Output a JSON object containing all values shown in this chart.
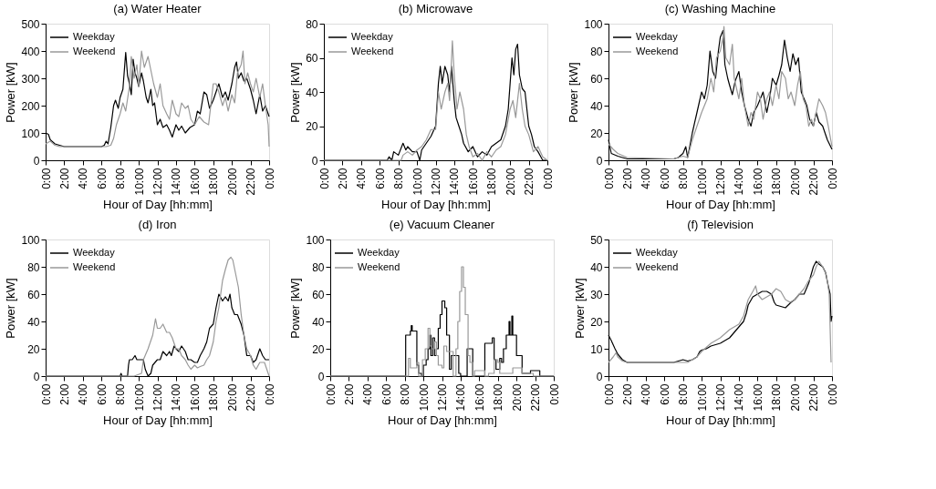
{
  "chart_data": [
    {
      "type": "line",
      "title": "(a) Water Heater",
      "xlabel": "Hour of Day [hh:mm]",
      "ylabel": "Power [kW]",
      "legend": "top left",
      "grid": false,
      "xlim": [
        0,
        24
      ],
      "ylim": [
        0,
        500
      ],
      "yticks": [
        0,
        100,
        200,
        300,
        400,
        500
      ],
      "xticks": [
        {
          "value": 0,
          "label": "0:00"
        },
        {
          "value": 2,
          "label": "2:00"
        },
        {
          "value": 4,
          "label": "4:00"
        },
        {
          "value": 6,
          "label": "6:00"
        },
        {
          "value": 8,
          "label": "8:00"
        },
        {
          "value": 10,
          "label": "10:00"
        },
        {
          "value": 12,
          "label": "12:00"
        },
        {
          "value": 14,
          "label": "14:00"
        },
        {
          "value": 16,
          "label": "16:00"
        },
        {
          "value": 18,
          "label": "18:00"
        },
        {
          "value": 20,
          "label": "20:00"
        },
        {
          "value": 22,
          "label": "22:00"
        },
        {
          "value": 24,
          "label": "0:00"
        }
      ],
      "series": [
        {
          "name": "Weekday",
          "color": "#000000",
          "x": [
            0,
            0.3,
            0.5,
            1,
            1.5,
            2,
            6,
            6.3,
            6.5,
            6.7,
            7,
            7.3,
            7.5,
            7.8,
            8,
            8.3,
            8.5,
            8.6,
            8.8,
            9,
            9.2,
            9.4,
            9.6,
            9.8,
            10,
            10.3,
            10.5,
            10.8,
            11,
            11.3,
            11.5,
            11.7,
            12,
            12.3,
            12.6,
            13,
            13.3,
            13.6,
            14,
            14.3,
            14.6,
            15,
            15.5,
            16,
            16.3,
            16.6,
            17,
            17.3,
            17.6,
            18,
            18.3,
            18.6,
            19,
            19.3,
            19.6,
            20,
            20.3,
            20.5,
            20.7,
            21,
            21.3,
            21.6,
            22,
            22.3,
            22.6,
            23,
            23.3,
            23.6,
            23.8,
            24
          ],
          "values": [
            100,
            95,
            75,
            60,
            55,
            50,
            50,
            55,
            70,
            60,
            120,
            200,
            220,
            190,
            230,
            260,
            350,
            395,
            310,
            280,
            240,
            370,
            320,
            300,
            270,
            320,
            290,
            230,
            210,
            260,
            200,
            210,
            130,
            150,
            120,
            130,
            110,
            85,
            130,
            110,
            125,
            100,
            120,
            130,
            180,
            170,
            250,
            240,
            190,
            220,
            250,
            280,
            230,
            250,
            220,
            280,
            340,
            360,
            300,
            320,
            290,
            300,
            260,
            220,
            170,
            240,
            180,
            200,
            180,
            160
          ]
        },
        {
          "name": "Weekend",
          "color": "#999999",
          "x": [
            0,
            0.5,
            1,
            1.5,
            6.5,
            7,
            7.3,
            7.6,
            8,
            8.3,
            8.6,
            9,
            9.2,
            9.5,
            9.8,
            10,
            10.3,
            10.6,
            11,
            11.3,
            11.6,
            12,
            12.3,
            12.6,
            13,
            13.3,
            13.6,
            14,
            14.3,
            14.6,
            15,
            15.3,
            15.6,
            16,
            16.5,
            17,
            17.5,
            18,
            18.3,
            18.6,
            19,
            19.3,
            19.6,
            20,
            20.3,
            20.6,
            21,
            21.2,
            21.4,
            21.7,
            22,
            22.3,
            22.6,
            23,
            23.3,
            23.6,
            23.9,
            24
          ],
          "values": [
            60,
            70,
            55,
            50,
            50,
            55,
            80,
            130,
            170,
            210,
            180,
            270,
            380,
            300,
            350,
            270,
            400,
            340,
            380,
            330,
            280,
            230,
            280,
            200,
            170,
            150,
            220,
            170,
            160,
            210,
            190,
            200,
            150,
            130,
            160,
            140,
            130,
            280,
            280,
            250,
            200,
            230,
            180,
            240,
            210,
            320,
            350,
            400,
            280,
            320,
            280,
            250,
            300,
            230,
            280,
            200,
            130,
            50
          ]
        }
      ]
    },
    {
      "type": "line",
      "title": "(b) Microwave",
      "xlabel": "Hour of Day [hh:mm]",
      "ylabel": "Power [kW]",
      "legend": "top left",
      "grid": false,
      "xlim": [
        0,
        24
      ],
      "ylim": [
        0,
        80
      ],
      "yticks": [
        0,
        20,
        40,
        60,
        80
      ],
      "xticks": [
        {
          "value": 0,
          "label": "0:00"
        },
        {
          "value": 2,
          "label": "2:00"
        },
        {
          "value": 4,
          "label": "4:00"
        },
        {
          "value": 6,
          "label": "6:00"
        },
        {
          "value": 8,
          "label": "8:00"
        },
        {
          "value": 10,
          "label": "10:00"
        },
        {
          "value": 12,
          "label": "12:00"
        },
        {
          "value": 14,
          "label": "14:00"
        },
        {
          "value": 16,
          "label": "16:00"
        },
        {
          "value": 18,
          "label": "18:00"
        },
        {
          "value": 20,
          "label": "20:00"
        },
        {
          "value": 22,
          "label": "22:00"
        },
        {
          "value": 24,
          "label": "0:00"
        }
      ],
      "series": [
        {
          "name": "Weekday",
          "color": "#000000",
          "x": [
            0,
            6.8,
            7,
            7.3,
            7.5,
            8,
            8.5,
            8.8,
            9,
            9.5,
            10,
            10.3,
            10.5,
            11,
            11.5,
            12,
            12.3,
            12.5,
            12.7,
            13,
            13.3,
            13.5,
            13.7,
            14,
            14.2,
            14.5,
            14.8,
            15,
            15.5,
            16,
            16.5,
            17,
            17.5,
            18,
            18.5,
            19,
            19.5,
            19.8,
            20,
            20.2,
            20.4,
            20.6,
            20.8,
            21,
            21.3,
            21.6,
            22,
            22.3,
            22.6,
            23,
            23.3,
            23.5,
            24
          ],
          "values": [
            0,
            0,
            2,
            0,
            5,
            3,
            10,
            6,
            8,
            5,
            5,
            0,
            6,
            10,
            14,
            20,
            45,
            55,
            45,
            55,
            50,
            40,
            55,
            35,
            25,
            20,
            15,
            10,
            5,
            8,
            2,
            5,
            3,
            8,
            10,
            12,
            20,
            30,
            45,
            60,
            50,
            65,
            68,
            50,
            42,
            40,
            20,
            15,
            8,
            5,
            2,
            0,
            0
          ]
        },
        {
          "name": "Weekend",
          "color": "#999999",
          "x": [
            0,
            8.3,
            8.5,
            9,
            9.5,
            10,
            10.5,
            11,
            11.5,
            12,
            12.3,
            12.6,
            13,
            13.3,
            13.5,
            13.8,
            14,
            14.3,
            14.6,
            15,
            15.3,
            15.6,
            16,
            16.5,
            17,
            17.5,
            18,
            18.5,
            19,
            19.5,
            20,
            20.3,
            20.6,
            21,
            21.3,
            21.6,
            22,
            22.5,
            23,
            23.5,
            24
          ],
          "values": [
            0,
            0,
            3,
            5,
            3,
            6,
            8,
            12,
            18,
            18,
            40,
            30,
            40,
            45,
            35,
            70,
            50,
            30,
            40,
            30,
            15,
            8,
            2,
            4,
            0,
            5,
            2,
            6,
            8,
            15,
            30,
            35,
            25,
            45,
            30,
            20,
            15,
            5,
            8,
            2,
            0
          ]
        }
      ]
    },
    {
      "type": "line",
      "title": "(c) Washing Machine",
      "xlabel": "Hour of Day [hh:mm]",
      "ylabel": "Power [kW]",
      "legend": "top left",
      "grid": false,
      "xlim": [
        0,
        24
      ],
      "ylim": [
        0,
        100
      ],
      "yticks": [
        0,
        20,
        40,
        60,
        80,
        100
      ],
      "xticks": [
        {
          "value": 0,
          "label": "0:00"
        },
        {
          "value": 2,
          "label": "2:00"
        },
        {
          "value": 4,
          "label": "4:00"
        },
        {
          "value": 6,
          "label": "6:00"
        },
        {
          "value": 8,
          "label": "8:00"
        },
        {
          "value": 10,
          "label": "10:00"
        },
        {
          "value": 12,
          "label": "12:00"
        },
        {
          "value": 14,
          "label": "14:00"
        },
        {
          "value": 16,
          "label": "16:00"
        },
        {
          "value": 18,
          "label": "18:00"
        },
        {
          "value": 20,
          "label": "20:00"
        },
        {
          "value": 22,
          "label": "22:00"
        },
        {
          "value": 24,
          "label": "0:00"
        }
      ],
      "series": [
        {
          "name": "Weekday",
          "color": "#000000",
          "x": [
            0,
            0.3,
            1,
            2,
            7,
            7.5,
            8,
            8.3,
            8.5,
            9,
            9.5,
            10,
            10.3,
            10.6,
            10.9,
            11.2,
            11.5,
            11.8,
            12,
            12.3,
            12.5,
            12.8,
            13,
            13.3,
            13.6,
            14,
            14.3,
            14.6,
            15,
            15.3,
            15.6,
            16,
            16.3,
            16.6,
            17,
            17.3,
            17.6,
            18,
            18.3,
            18.6,
            18.9,
            19.2,
            19.5,
            19.8,
            20.1,
            20.4,
            20.7,
            21,
            21.3,
            21.6,
            22,
            22.3,
            22.6,
            23,
            23.5,
            24
          ],
          "values": [
            15,
            5,
            3,
            1,
            1,
            2,
            5,
            10,
            2,
            20,
            35,
            50,
            45,
            55,
            80,
            65,
            60,
            80,
            90,
            95,
            70,
            60,
            55,
            48,
            58,
            65,
            50,
            40,
            30,
            25,
            35,
            40,
            45,
            50,
            35,
            45,
            60,
            55,
            62,
            70,
            88,
            75,
            65,
            78,
            70,
            75,
            50,
            45,
            40,
            30,
            25,
            35,
            28,
            25,
            15,
            8
          ]
        },
        {
          "name": "Weekend",
          "color": "#999999",
          "x": [
            0,
            0.5,
            1,
            2,
            7,
            8,
            8.5,
            9,
            9.5,
            10,
            10.3,
            10.6,
            11,
            11.3,
            11.6,
            12,
            12.3,
            12.4,
            12.6,
            13,
            13.3,
            13.5,
            14,
            14.3,
            14.6,
            15,
            15.3,
            15.6,
            16,
            16.3,
            16.6,
            17,
            17.3,
            17.6,
            18,
            18.3,
            18.6,
            19,
            19.3,
            19.6,
            20,
            20.3,
            20.6,
            20.9,
            21.2,
            21.5,
            21.8,
            22,
            22.3,
            22.6,
            23,
            23.3,
            23.6,
            24
          ],
          "values": [
            12,
            8,
            5,
            2,
            1,
            3,
            2,
            15,
            25,
            35,
            40,
            45,
            60,
            50,
            75,
            80,
            90,
            98,
            75,
            70,
            85,
            60,
            45,
            60,
            40,
            25,
            35,
            30,
            50,
            45,
            30,
            45,
            50,
            40,
            55,
            45,
            65,
            60,
            45,
            50,
            40,
            55,
            65,
            45,
            40,
            25,
            30,
            25,
            35,
            45,
            40,
            35,
            25,
            10
          ]
        }
      ]
    },
    {
      "type": "line",
      "title": "(d) Iron",
      "xlabel": "Hour of Day [hh:mm]",
      "ylabel": "Power [kW]",
      "legend": "top left",
      "grid": false,
      "xlim": [
        0,
        24
      ],
      "ylim": [
        0,
        100
      ],
      "yticks": [
        0,
        20,
        40,
        60,
        80,
        100
      ],
      "xticks": [
        {
          "value": 0,
          "label": "0:00"
        },
        {
          "value": 2,
          "label": "2:00"
        },
        {
          "value": 4,
          "label": "4:00"
        },
        {
          "value": 6,
          "label": "6:00"
        },
        {
          "value": 8,
          "label": "8:00"
        },
        {
          "value": 10,
          "label": "10:00"
        },
        {
          "value": 12,
          "label": "12:00"
        },
        {
          "value": 14,
          "label": "14:00"
        },
        {
          "value": 16,
          "label": "16:00"
        },
        {
          "value": 18,
          "label": "18:00"
        },
        {
          "value": 20,
          "label": "20:00"
        },
        {
          "value": 22,
          "label": "22:00"
        },
        {
          "value": 24,
          "label": "0:00"
        }
      ],
      "series": [
        {
          "name": "Weekday",
          "color": "#000000",
          "x": [
            0,
            8,
            8.1,
            8.2,
            8.8,
            8.9,
            9,
            9.3,
            9.6,
            9.8,
            10.5,
            10.7,
            11,
            11.3,
            11.5,
            12,
            12.3,
            12.6,
            13,
            13.3,
            13.5,
            13.8,
            14,
            14.3,
            14.6,
            15,
            15.3,
            15.6,
            16,
            16.3,
            16.6,
            17,
            17.3,
            17.6,
            18,
            18.3,
            18.6,
            19,
            19.3,
            19.6,
            19.8,
            20,
            20.3,
            20.6,
            21,
            21.3,
            21.6,
            22,
            22.3,
            22.6,
            23,
            23.3,
            23.6,
            24
          ],
          "values": [
            0,
            0,
            2,
            0,
            0,
            8,
            12,
            12,
            15,
            12,
            12,
            5,
            0,
            2,
            8,
            12,
            12,
            18,
            15,
            18,
            15,
            22,
            20,
            18,
            22,
            18,
            12,
            12,
            10,
            10,
            15,
            20,
            25,
            35,
            38,
            50,
            60,
            55,
            58,
            55,
            60,
            50,
            45,
            45,
            38,
            30,
            15,
            15,
            10,
            12,
            20,
            15,
            12,
            12
          ]
        },
        {
          "name": "Weekend",
          "color": "#999999",
          "x": [
            0,
            9.5,
            10.3,
            10.5,
            11,
            11.5,
            11.8,
            12,
            12.3,
            12.6,
            13,
            13.3,
            13.6,
            14,
            14.3,
            14.6,
            15,
            15.3,
            15.6,
            16,
            16.3,
            16.6,
            17,
            17.3,
            17.6,
            18,
            18.3,
            18.6,
            19,
            19.3,
            19.6,
            19.9,
            20.1,
            20.4,
            20.7,
            21,
            21.3,
            21.6,
            22,
            22.3,
            22.6,
            23,
            23.5,
            24
          ],
          "values": [
            0,
            0,
            2,
            12,
            20,
            30,
            42,
            35,
            35,
            38,
            32,
            32,
            28,
            20,
            20,
            15,
            12,
            8,
            5,
            8,
            6,
            7,
            8,
            12,
            15,
            25,
            40,
            50,
            70,
            78,
            85,
            87,
            85,
            75,
            65,
            45,
            30,
            20,
            15,
            8,
            5,
            10,
            10,
            0
          ]
        }
      ]
    },
    {
      "type": "line",
      "title": "(e) Vacuum Cleaner",
      "xlabel": "Hour of Day [hh:mm]",
      "ylabel": "Power [kW]",
      "legend": "top left",
      "grid": false,
      "xlim": [
        0,
        24
      ],
      "ylim": [
        0,
        100
      ],
      "yticks": [
        0,
        20,
        40,
        60,
        80,
        100
      ],
      "xticks": [
        {
          "value": 0,
          "label": "0:00"
        },
        {
          "value": 2,
          "label": "2:00"
        },
        {
          "value": 4,
          "label": "4:00"
        },
        {
          "value": 6,
          "label": "6:00"
        },
        {
          "value": 8,
          "label": "8:00"
        },
        {
          "value": 10,
          "label": "10:00"
        },
        {
          "value": 12,
          "label": "12:00"
        },
        {
          "value": 14,
          "label": "14:00"
        },
        {
          "value": 16,
          "label": "16:00"
        },
        {
          "value": 18,
          "label": "18:00"
        },
        {
          "value": 20,
          "label": "20:00"
        },
        {
          "value": 22,
          "label": "22:00"
        },
        {
          "value": 24,
          "label": "0:00"
        }
      ],
      "series": [
        {
          "name": "Weekday",
          "color": "#000000",
          "type": "step",
          "x": [
            0,
            8.1,
            8.6,
            8.7,
            8.8,
            9.3,
            9.5,
            9.8,
            10,
            10.3,
            10.5,
            10.7,
            10.8,
            11,
            11.2,
            11.4,
            11.6,
            11.8,
            12,
            12.3,
            12.5,
            12.8,
            13,
            13.8,
            14,
            14.7,
            15.3,
            16.6,
            17.4,
            17.6,
            17.8,
            18.2,
            18.4,
            18.6,
            18.9,
            19.2,
            19.3,
            19.5,
            19.6,
            20,
            20.6,
            21.5,
            22.5,
            24
          ],
          "values": [
            0,
            30,
            33,
            37,
            33,
            8,
            2,
            0,
            8,
            12,
            20,
            30,
            15,
            28,
            15,
            20,
            35,
            45,
            55,
            50,
            30,
            5,
            15,
            2,
            0,
            20,
            0,
            24,
            28,
            12,
            5,
            13,
            10,
            20,
            30,
            40,
            30,
            44,
            30,
            15,
            2,
            4,
            0,
            0
          ]
        },
        {
          "name": "Weekend",
          "color": "#999999",
          "type": "step",
          "x": [
            0,
            8.3,
            8.4,
            8.6,
            9.3,
            9.5,
            9.9,
            10.2,
            10.5,
            10.7,
            10.9,
            11.2,
            11.4,
            11.6,
            12,
            12.2,
            12.5,
            13.2,
            13.5,
            13.7,
            13.9,
            14.1,
            14.3,
            14.5,
            14.8,
            15,
            15.3,
            15.5,
            16.6,
            17,
            17.6,
            18,
            18.2,
            19.2,
            19.6,
            20.3,
            20.6,
            21.8,
            24
          ],
          "values": [
            0,
            0,
            13,
            6,
            10,
            0,
            12,
            20,
            35,
            22,
            20,
            25,
            15,
            8,
            6,
            22,
            18,
            0,
            20,
            40,
            62,
            80,
            65,
            45,
            15,
            10,
            0,
            4,
            0,
            2,
            12,
            10,
            2,
            2,
            6,
            6,
            2,
            0,
            0
          ]
        }
      ]
    },
    {
      "type": "line",
      "title": "(f) Television",
      "xlabel": "Hour of Day [hh:mm]",
      "ylabel": "Power [kW]",
      "legend": "top left",
      "grid": false,
      "xlim": [
        0,
        24
      ],
      "ylim": [
        0,
        50
      ],
      "yticks": [
        0,
        10,
        20,
        30,
        40,
        50
      ],
      "xticks": [
        {
          "value": 0,
          "label": "0:00"
        },
        {
          "value": 2,
          "label": "2:00"
        },
        {
          "value": 4,
          "label": "4:00"
        },
        {
          "value": 6,
          "label": "6:00"
        },
        {
          "value": 8,
          "label": "8:00"
        },
        {
          "value": 10,
          "label": "10:00"
        },
        {
          "value": 12,
          "label": "12:00"
        },
        {
          "value": 14,
          "label": "14:00"
        },
        {
          "value": 16,
          "label": "16:00"
        },
        {
          "value": 18,
          "label": "18:00"
        },
        {
          "value": 20,
          "label": "20:00"
        },
        {
          "value": 22,
          "label": "22:00"
        },
        {
          "value": 24,
          "label": "0:00"
        }
      ],
      "series": [
        {
          "name": "Weekday",
          "color": "#000000",
          "x": [
            0,
            0.3,
            0.7,
            1,
            1.5,
            2,
            7,
            7.5,
            8,
            8.5,
            9,
            9.5,
            9.8,
            10,
            10.5,
            11,
            11.5,
            12,
            12.5,
            13,
            13.5,
            14,
            14.5,
            14.8,
            15,
            15.5,
            16,
            16.5,
            17,
            17.5,
            17.8,
            18,
            18.5,
            19,
            19.3,
            19.6,
            20,
            20.5,
            21,
            21.5,
            22,
            22.3,
            22.6,
            23,
            23.3,
            23.6,
            23.8,
            23.9,
            24
          ],
          "values": [
            15,
            13,
            10,
            8,
            6,
            5,
            5,
            5.5,
            6,
            5.5,
            6,
            7,
            9,
            9.5,
            10,
            11,
            11.5,
            12,
            13,
            14,
            16,
            18,
            20,
            23,
            26,
            29,
            30,
            31,
            31,
            30,
            27,
            26,
            25.5,
            25,
            26,
            27,
            28,
            30,
            30,
            34,
            40,
            42,
            41,
            40,
            38,
            33,
            30,
            20,
            22
          ]
        },
        {
          "name": "Weekend",
          "color": "#999999",
          "x": [
            0,
            0.5,
            0.8,
            1,
            1.5,
            2,
            8.5,
            9,
            9.5,
            10,
            10.5,
            11,
            11.5,
            12,
            12.5,
            13,
            13.5,
            14,
            14.5,
            15,
            15.5,
            15.8,
            16,
            16.5,
            17,
            17.5,
            18,
            18.5,
            19,
            19.5,
            20,
            20.5,
            21,
            21.5,
            22,
            22.3,
            22.6,
            23,
            23.4,
            23.7,
            23.9
          ],
          "values": [
            5,
            7,
            8.5,
            7,
            5.5,
            5,
            5,
            6,
            7,
            9,
            10.5,
            12,
            13,
            14,
            15.5,
            17,
            18,
            19,
            22,
            28,
            31,
            33,
            30,
            28,
            29,
            30,
            32,
            31,
            28,
            27,
            28,
            30,
            32,
            35,
            37,
            40,
            42,
            40,
            37,
            30,
            5
          ]
        }
      ]
    }
  ]
}
